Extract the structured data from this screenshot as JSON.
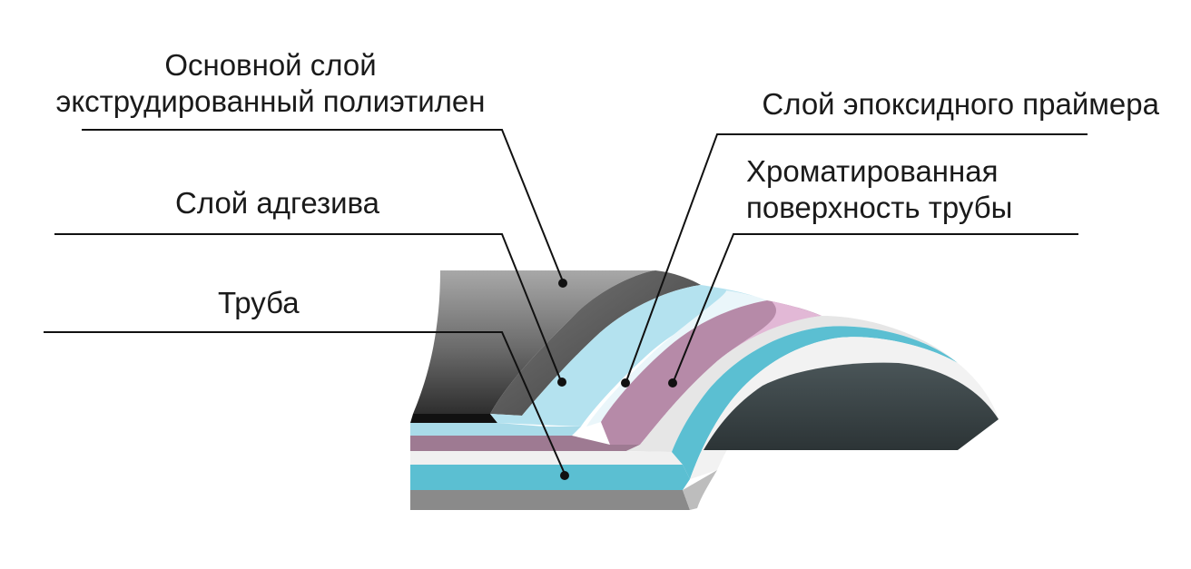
{
  "labels": {
    "base_layer_line1": "Основной слой",
    "base_layer_line2": "экструдированный полиэтилен",
    "epoxy_primer": "Слой эпоксидного праймера",
    "chromated_line1": "Хроматированная",
    "chromated_line2": "поверхность трубы",
    "adhesive": "Слой адгезива",
    "pipe": "Труба"
  },
  "colors": {
    "polyethylene_dark": "#3c3c3c",
    "polyethylene_light": "#9a9a9a",
    "adhesive": "#b4e2ef",
    "epoxy_primer": "#b68aa8",
    "chromated_surface": "#e6e6e6",
    "pipe_cyan": "#5bbfd2",
    "pipe_inner": "#394447"
  }
}
